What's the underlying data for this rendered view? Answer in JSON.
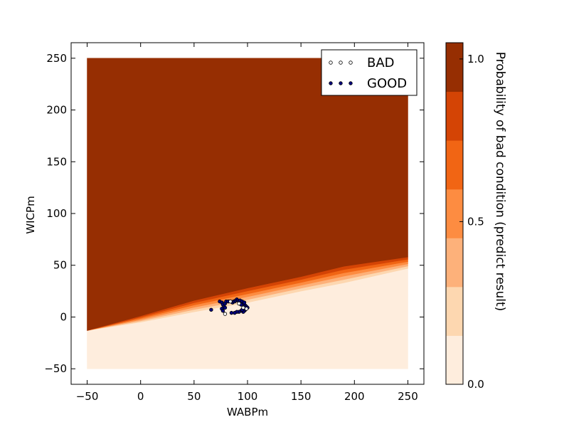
{
  "chart_data": {
    "type": "contour",
    "xlabel": "WABPm",
    "ylabel": "WICPm",
    "xlim": [
      -65,
      265
    ],
    "ylim": [
      -65,
      265
    ],
    "xticks": [
      -50,
      0,
      50,
      100,
      150,
      200,
      250
    ],
    "yticks": [
      -50,
      0,
      50,
      100,
      150,
      200,
      250
    ],
    "contour_domain": {
      "x": [
        -50,
        250
      ],
      "y": [
        -50,
        250
      ]
    },
    "boundary": {
      "x": [
        -50,
        0,
        50,
        100,
        150,
        190,
        250
      ],
      "low_edge_y": [
        -13,
        -5,
        5,
        14,
        25,
        33,
        47
      ],
      "high_edge_y": [
        -13,
        1,
        16,
        28,
        39,
        49,
        58
      ]
    },
    "contour_levels": [
      0.0,
      0.17,
      0.33,
      0.5,
      0.67,
      0.83,
      1.0
    ],
    "level_colors": [
      "#feeddd",
      "#fdd7b0",
      "#fdb17a",
      "#fd8c41",
      "#f16514",
      "#d44405",
      "#962e02"
    ],
    "colorbar": {
      "label": "Probability of bad condition (predict result)",
      "ticks": [
        0.0,
        0.5,
        1.0
      ],
      "tick_labels": [
        "0.0",
        "0.5",
        "1.0"
      ],
      "range": [
        0.0,
        1.05
      ]
    },
    "legend": {
      "placement": "top-right",
      "entries": [
        {
          "label": "BAD",
          "marker": "hollow-circle",
          "color": "#ffffff"
        },
        {
          "label": "GOOD",
          "marker": "filled-circle",
          "color": "#000080"
        }
      ]
    },
    "series": [
      {
        "name": "GOOD",
        "points": [
          [
            66,
            7
          ],
          [
            74,
            15
          ],
          [
            76,
            14
          ],
          [
            77,
            12
          ],
          [
            78,
            10
          ],
          [
            79,
            13
          ],
          [
            80,
            15
          ],
          [
            82,
            15
          ],
          [
            84,
            15
          ],
          [
            86,
            14
          ],
          [
            87,
            15
          ],
          [
            88,
            15
          ],
          [
            89,
            16
          ],
          [
            90,
            17
          ],
          [
            91,
            16
          ],
          [
            92,
            15
          ],
          [
            93,
            16
          ],
          [
            94,
            14
          ],
          [
            95,
            15
          ],
          [
            96,
            13
          ],
          [
            97,
            12
          ],
          [
            98,
            11
          ],
          [
            99,
            10
          ],
          [
            100,
            9
          ],
          [
            98,
            7
          ],
          [
            97,
            6
          ],
          [
            96,
            5
          ],
          [
            94,
            6
          ],
          [
            92,
            5
          ],
          [
            90,
            5
          ],
          [
            88,
            4
          ],
          [
            85,
            4
          ],
          [
            76,
            8
          ],
          [
            77,
            6
          ],
          [
            79,
            9
          ],
          [
            94,
            12
          ],
          [
            95,
            7
          ],
          [
            97,
            14
          ]
        ]
      },
      {
        "name": "BAD",
        "points": [
          [
            79,
            3
          ],
          [
            84,
            15
          ],
          [
            92,
            13
          ],
          [
            96,
            9
          ],
          [
            99,
            8
          ]
        ]
      }
    ]
  }
}
